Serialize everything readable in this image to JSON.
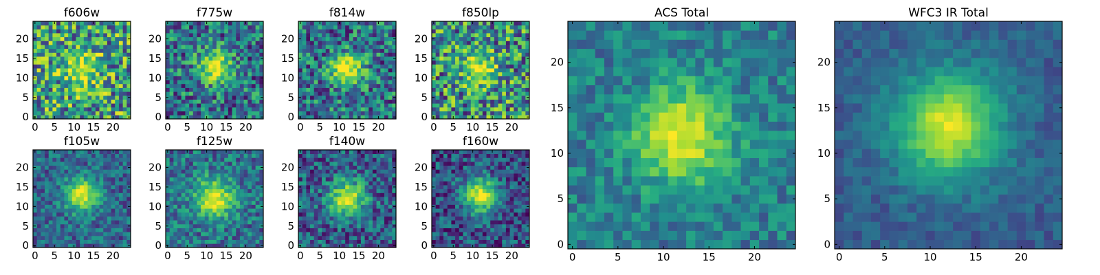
{
  "chart_data": {
    "type": "heatmap",
    "colormap": "viridis",
    "grid_size": 25,
    "panels": [
      {
        "id": "f606w",
        "title": "f606w",
        "xticks": [
          "0",
          "5",
          "10",
          "15",
          "20"
        ],
        "yticks": [
          "0",
          "5",
          "10",
          "15",
          "20"
        ],
        "peak": [
          12,
          12
        ],
        "sigma": 3.0,
        "amplitude": 0.45,
        "background": 0.55,
        "noise": 0.42
      },
      {
        "id": "f775w",
        "title": "f775w",
        "xticks": [
          "0",
          "5",
          "10",
          "15",
          "20"
        ],
        "yticks": [
          "0",
          "5",
          "10",
          "15",
          "20"
        ],
        "peak": [
          12,
          13
        ],
        "sigma": 3.0,
        "amplitude": 0.6,
        "background": 0.38,
        "noise": 0.35
      },
      {
        "id": "f814w",
        "title": "f814w",
        "xticks": [
          "0",
          "5",
          "10",
          "15",
          "20"
        ],
        "yticks": [
          "0",
          "5",
          "10",
          "15",
          "20"
        ],
        "peak": [
          12,
          12
        ],
        "sigma": 3.0,
        "amplitude": 0.6,
        "background": 0.38,
        "noise": 0.35
      },
      {
        "id": "f850lp",
        "title": "f850lp",
        "xticks": [
          "0",
          "5",
          "10",
          "15",
          "20"
        ],
        "yticks": [
          "0",
          "5",
          "10",
          "15",
          "20"
        ],
        "peak": [
          12,
          12
        ],
        "sigma": 3.0,
        "amplitude": 0.45,
        "background": 0.5,
        "noise": 0.42
      },
      {
        "id": "f105w",
        "title": "f105w",
        "xticks": [
          "0",
          "5",
          "10",
          "15",
          "20"
        ],
        "yticks": [
          "0",
          "5",
          "10",
          "15",
          "20"
        ],
        "peak": [
          12,
          13
        ],
        "sigma": 3.2,
        "amplitude": 0.65,
        "background": 0.33,
        "noise": 0.22
      },
      {
        "id": "f125w",
        "title": "f125w",
        "xticks": [
          "0",
          "5",
          "10",
          "15",
          "20"
        ],
        "yticks": [
          "0",
          "5",
          "10",
          "15",
          "20"
        ],
        "peak": [
          12,
          12
        ],
        "sigma": 3.5,
        "amplitude": 0.6,
        "background": 0.38,
        "noise": 0.25
      },
      {
        "id": "f140w",
        "title": "f140w",
        "xticks": [
          "0",
          "5",
          "10",
          "15",
          "20"
        ],
        "yticks": [
          "0",
          "5",
          "10",
          "15",
          "20"
        ],
        "peak": [
          12,
          12
        ],
        "sigma": 3.3,
        "amplitude": 0.65,
        "background": 0.3,
        "noise": 0.28
      },
      {
        "id": "f160w",
        "title": "f160w",
        "xticks": [
          "0",
          "5",
          "10",
          "15",
          "20"
        ],
        "yticks": [
          "0",
          "5",
          "10",
          "15",
          "20"
        ],
        "peak": [
          12,
          13
        ],
        "sigma": 3.3,
        "amplitude": 0.7,
        "background": 0.25,
        "noise": 0.26
      },
      {
        "id": "acs-total",
        "title": "ACS Total",
        "xticks": [
          "0",
          "5",
          "10",
          "15",
          "20"
        ],
        "yticks": [
          "0",
          "5",
          "10",
          "15",
          "20"
        ],
        "peak": [
          12,
          12
        ],
        "sigma": 3.8,
        "amplitude": 0.55,
        "background": 0.43,
        "noise": 0.18
      },
      {
        "id": "wfc3-ir-total",
        "title": "WFC3 IR Total",
        "xticks": [
          "0",
          "5",
          "10",
          "15",
          "20"
        ],
        "yticks": [
          "0",
          "5",
          "10",
          "15",
          "20"
        ],
        "peak": [
          12,
          13
        ],
        "sigma": 4.2,
        "amplitude": 0.65,
        "background": 0.3,
        "noise": 0.1
      }
    ]
  }
}
